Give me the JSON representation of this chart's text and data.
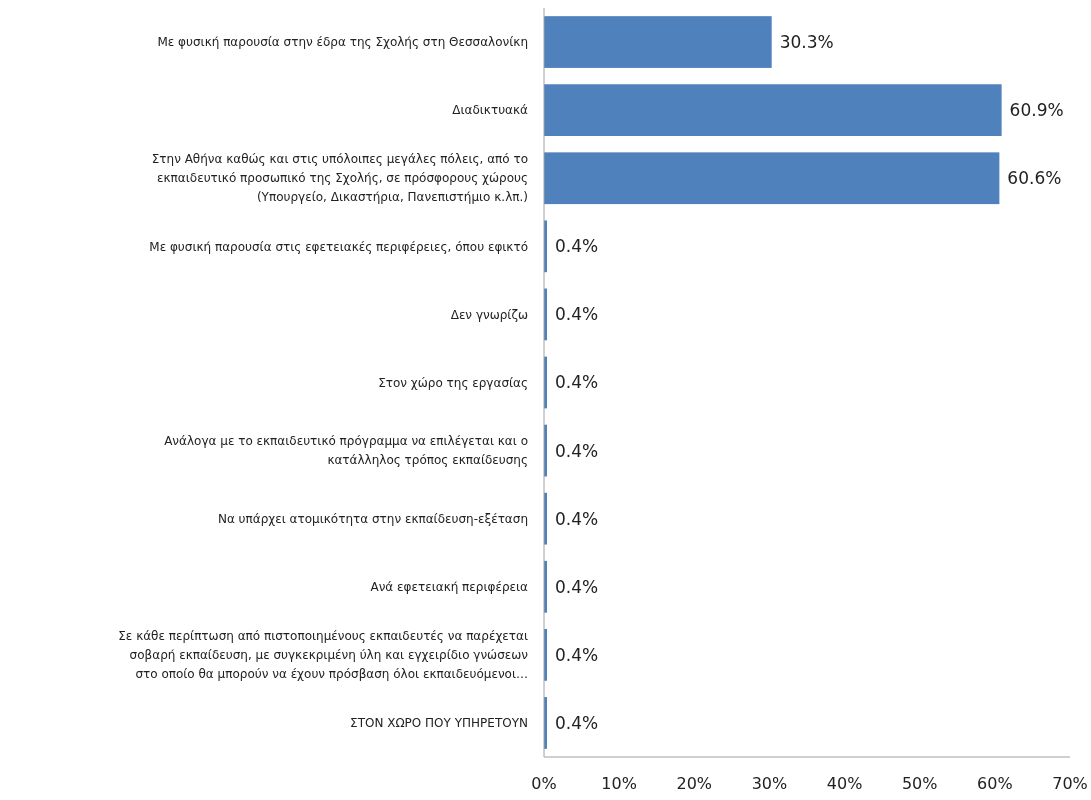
{
  "chart_data": {
    "type": "bar",
    "orientation": "horizontal",
    "categories": [
      "Με φυσική παρουσία στην έδρα της Σχολής στη Θεσσαλονίκη",
      "Διαδικτυακά",
      "Στην Αθήνα καθώς και στις υπόλοιπες μεγάλες πόλεις, από το\nεκπαιδευτικό  προσωπικό  της Σχολής, σε πρόσφορους χώρους\n(Υπουργείο, Δικαστήρια, Πανεπιστήμιο κ.λπ.)",
      "Με φυσική παρουσία στις εφετειακές περιφέρειες, όπου εφικτό",
      "Δεν γνωρίζω",
      "Στον χώρο της εργασίας",
      "Ανάλογα με το εκπαιδευτικό πρόγραμμα να επιλέγεται και ο\nκατάλληλος τρόπος εκπαίδευσης",
      "Να υπάρχει ατομικότητα  στην εκπαίδευση-εξέταση",
      "Ανά εφετειακή περιφέρεια",
      "Σε κάθε περίπτωση από πιστοποιημένους εκπαιδευτές να παρέχεται\nσοβαρή εκπαίδευση, με συγκεκριμένη ύλη και εγχειρίδιο γνώσεων\nστο οποίο θα μπορούν να έχουν πρόσβαση όλοι εκπαιδευόμενοι…",
      "ΣΤΟΝ ΧΩΡΟ ΠΟΥ ΥΠΗΡΕΤΟΥΝ"
    ],
    "values": [
      30.3,
      60.9,
      60.6,
      0.4,
      0.4,
      0.4,
      0.4,
      0.4,
      0.4,
      0.4,
      0.4
    ],
    "value_labels": [
      "30.3%",
      "60.9%",
      "60.6%",
      "0.4%",
      "0.4%",
      "0.4%",
      "0.4%",
      "0.4%",
      "0.4%",
      "0.4%",
      "0.4%"
    ],
    "color": "#4f81bd",
    "xlim": [
      0,
      70
    ],
    "xticks": [
      {
        "value": 0,
        "label": "0%"
      },
      {
        "value": 10,
        "label": "10%"
      },
      {
        "value": 20,
        "label": "20%"
      },
      {
        "value": 30,
        "label": "30%"
      },
      {
        "value": 40,
        "label": "40%"
      },
      {
        "value": 50,
        "label": "50%"
      },
      {
        "value": 60,
        "label": "60%"
      },
      {
        "value": 70,
        "label": "70%"
      }
    ],
    "grid": false
  }
}
